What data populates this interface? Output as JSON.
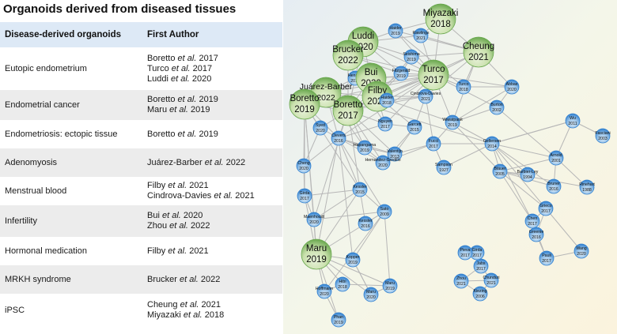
{
  "title": "Organoids derived from diseased tissues",
  "table": {
    "headers": [
      "Disease-derived organoids",
      "First Author"
    ],
    "rows": [
      {
        "disease": "Eutopic endometrium",
        "authors": [
          [
            "Boretto ",
            "et al.",
            " 2017"
          ],
          [
            "Turco ",
            "et al.",
            " 2017"
          ],
          [
            "Luddi ",
            "et al.",
            " 2020"
          ]
        ]
      },
      {
        "disease": "Endometrial cancer",
        "authors": [
          [
            "Boretto ",
            "et al.",
            " 2019"
          ],
          [
            "Maru ",
            "et al.",
            " 2019"
          ]
        ]
      },
      {
        "disease": "Endometriosis: ectopic tissue",
        "authors": [
          [
            "Boretto ",
            "et al.",
            " 2019"
          ]
        ]
      },
      {
        "disease": "Adenomyosis",
        "authors": [
          [
            "Juárez-Barber ",
            "et al.",
            " 2022"
          ]
        ]
      },
      {
        "disease": "Menstrual blood",
        "authors": [
          [
            "Filby ",
            "et al.",
            " 2021"
          ],
          [
            "Cindrova-Davies ",
            "et al.",
            " 2021"
          ]
        ]
      },
      {
        "disease": "Infertility",
        "authors": [
          [
            "Bui ",
            "et al.",
            " 2020"
          ],
          [
            "Zhou ",
            "et al.",
            " 2022"
          ]
        ]
      },
      {
        "disease": "Hormonal medication",
        "authors": [
          [
            "Filby ",
            "et al.",
            " 2021"
          ]
        ]
      },
      {
        "disease": "MRKH syndrome",
        "authors": [
          [
            "Brucker ",
            "et al.",
            " 2022"
          ]
        ]
      },
      {
        "disease": "iPSC",
        "authors": [
          [
            "Cheung ",
            "et al.",
            " 2021"
          ],
          [
            "Miyazaki ",
            "et al.",
            " 2018"
          ]
        ]
      }
    ]
  },
  "network": {
    "colors": {
      "big": "#6aa84f",
      "big_light": "#d9ead3",
      "small": "#2f7fcf",
      "small_light": "#cfe2f3",
      "edge": "#b7b7b7"
    },
    "nodes": [
      {
        "id": "miyazaki",
        "name": "Miyazaki",
        "year": "2018",
        "big": true
      },
      {
        "id": "haider1",
        "name": "Haider",
        "year": "2019",
        "big": false
      },
      {
        "id": "rawlings",
        "name": "Rawlings",
        "year": "2021",
        "big": false
      },
      {
        "id": "luddi",
        "name": "Luddi",
        "year": "2020",
        "big": true
      },
      {
        "id": "cheung",
        "name": "Cheung",
        "year": "2021",
        "big": true
      },
      {
        "id": "brucker",
        "name": "Brucker",
        "year": "2022",
        "big": true
      },
      {
        "id": "seishima",
        "name": "Seishima",
        "year": "2019",
        "big": false
      },
      {
        "id": "fitzgerald",
        "name": "Fitzgerald",
        "year": "2019",
        "big": false
      },
      {
        "id": "turco",
        "name": "Turco",
        "year": "2017",
        "big": true
      },
      {
        "id": "hennes",
        "name": "Hennes",
        "year": "2019",
        "big": false
      },
      {
        "id": "bui",
        "name": "Bui",
        "year": "2020",
        "big": true
      },
      {
        "id": "juarez",
        "name": "Juárez-Barber",
        "year": "2022",
        "big": true
      },
      {
        "id": "filby",
        "name": "Filby",
        "year": "2021",
        "big": true
      },
      {
        "id": "boretto2019",
        "name": "Boretto",
        "year": "2019",
        "big": true
      },
      {
        "id": "boretto2017",
        "name": "Boretto",
        "year": "2017",
        "big": true
      },
      {
        "id": "cindrova",
        "name": "Cindrova-Davies",
        "year": "2021",
        "big": false
      },
      {
        "id": "abbas",
        "name": "Abbas",
        "year": "2020",
        "big": false
      },
      {
        "id": "haider2",
        "name": "Haider",
        "year": "2018",
        "big": false
      },
      {
        "id": "turco2",
        "name": "Turco",
        "year": "2018",
        "big": false
      },
      {
        "id": "syed",
        "name": "Syed",
        "year": "2020",
        "big": false
      },
      {
        "id": "nguyen",
        "name": "Nguyen",
        "year": "2017",
        "big": false
      },
      {
        "id": "garcett",
        "name": "Garcett",
        "year": "2015",
        "big": false
      },
      {
        "id": "burton",
        "name": "Burton",
        "year": "2002",
        "big": false
      },
      {
        "id": "wiwatpanit",
        "name": "Wiwatpanit",
        "year": "2019",
        "big": false
      },
      {
        "id": "clevers",
        "name": "Clevers",
        "year": "2016",
        "big": false
      },
      {
        "id": "fucci",
        "name": "Fucci",
        "year": "2017",
        "big": false
      },
      {
        "id": "hapangama",
        "name": "Hapangama",
        "year": "2019",
        "big": false
      },
      {
        "id": "valentijn",
        "name": "Valentijn",
        "year": "2013",
        "big": false
      },
      {
        "id": "gellersen",
        "name": "Gellersen",
        "year": "2014",
        "big": false
      },
      {
        "id": "wu",
        "name": "Wu",
        "year": "2011",
        "big": false
      },
      {
        "id": "fasciani",
        "name": "Fasciani",
        "year": "2003",
        "big": false
      },
      {
        "id": "hernandez",
        "name": "Hernandez-Gordillo",
        "year": "2020",
        "big": false
      },
      {
        "id": "cheng",
        "name": "Cheng",
        "year": "2020",
        "big": false
      },
      {
        "id": "sampson",
        "name": "Sampson",
        "year": "1927",
        "big": false
      },
      {
        "id": "blauer",
        "name": "Bläuer",
        "year": "2005",
        "big": false
      },
      {
        "id": "arnold",
        "name": "Arnold",
        "year": "2001",
        "big": false
      },
      {
        "id": "barbier",
        "name": "Barbier-Ley",
        "year": "1994",
        "big": false
      },
      {
        "id": "bruner",
        "name": "Bruner",
        "year": "2016",
        "big": false
      },
      {
        "id": "rinehart",
        "name": "Rinehart",
        "year": "1988",
        "big": false
      },
      {
        "id": "girda",
        "name": "Girda",
        "year": "2017",
        "big": false
      },
      {
        "id": "kessler1",
        "name": "Kessler",
        "year": "2015",
        "big": false
      },
      {
        "id": "maenhoudt",
        "name": "Maenhoudt",
        "year": "2020",
        "big": false
      },
      {
        "id": "sato",
        "name": "Sato",
        "year": "2009",
        "big": false
      },
      {
        "id": "kessler2",
        "name": "Kessler",
        "year": "2016",
        "big": false
      },
      {
        "id": "grieco",
        "name": "Grieco",
        "year": "2017",
        "big": false
      },
      {
        "id": "chen",
        "name": "Chen",
        "year": "2017",
        "big": false
      },
      {
        "id": "greenie",
        "name": "Greenie",
        "year": "2016",
        "big": false
      },
      {
        "id": "maru",
        "name": "Maru",
        "year": "2019",
        "big": true
      },
      {
        "id": "kopper",
        "name": "Kopper",
        "year": "2019",
        "big": false
      },
      {
        "id": "pauli",
        "name": "Pauli",
        "year": "2017",
        "big": false
      },
      {
        "id": "wang",
        "name": "Wang",
        "year": "2020",
        "big": false
      },
      {
        "id": "jabs",
        "name": "Jabs",
        "year": "2017",
        "big": false
      },
      {
        "id": "hoffmann",
        "name": "Hoffmann",
        "year": "2020",
        "big": false
      },
      {
        "id": "hibi",
        "name": "Hibi",
        "year": "2018",
        "big": false
      },
      {
        "id": "maru2",
        "name": "Maru",
        "year": "2019",
        "big": false
      },
      {
        "id": "maru3",
        "name": "Maru",
        "year": "2020",
        "big": false
      },
      {
        "id": "chunduri",
        "name": "Chunduri",
        "year": "2021",
        "big": false
      },
      {
        "id": "zhou",
        "name": "Zhou",
        "year": "2021",
        "big": false
      },
      {
        "id": "kiezing",
        "name": "Kiezing",
        "year": "2006",
        "big": false
      },
      {
        "id": "phan",
        "name": "Phan",
        "year": "2019",
        "big": false
      },
      {
        "id": "girda2",
        "name": "Girda",
        "year": "2017",
        "big": false
      },
      {
        "id": "pieva",
        "name": "Pieva",
        "year": "2017",
        "big": false
      }
    ],
    "edges": [
      [
        "boretto2017",
        "turco"
      ],
      [
        "boretto2017",
        "boretto2019"
      ],
      [
        "boretto2017",
        "juarez"
      ],
      [
        "boretto2017",
        "filby"
      ],
      [
        "boretto2017",
        "bui"
      ],
      [
        "boretto2017",
        "luddi"
      ],
      [
        "boretto2017",
        "brucker"
      ],
      [
        "boretto2017",
        "cheung"
      ],
      [
        "boretto2017",
        "fitzgerald"
      ],
      [
        "boretto2017",
        "hennes"
      ],
      [
        "boretto2017",
        "clevers"
      ],
      [
        "boretto2017",
        "nguyen"
      ],
      [
        "boretto2017",
        "syed"
      ],
      [
        "boretto2017",
        "hapangama"
      ],
      [
        "boretto2017",
        "valentijn"
      ],
      [
        "boretto2017",
        "hernandez"
      ],
      [
        "boretto2017",
        "kessler1"
      ],
      [
        "boretto2017",
        "maenhoudt"
      ],
      [
        "boretto2017",
        "cindrova"
      ],
      [
        "boretto2017",
        "haider2"
      ],
      [
        "turco",
        "boretto2019"
      ],
      [
        "turco",
        "juarez"
      ],
      [
        "turco",
        "filby"
      ],
      [
        "turco",
        "bui"
      ],
      [
        "turco",
        "luddi"
      ],
      [
        "turco",
        "brucker"
      ],
      [
        "turco",
        "cheung"
      ],
      [
        "turco",
        "fitzgerald"
      ],
      [
        "turco",
        "haider1"
      ],
      [
        "turco",
        "rawlings"
      ],
      [
        "turco",
        "seishima"
      ],
      [
        "turco",
        "cindrova"
      ],
      [
        "turco",
        "garcett"
      ],
      [
        "turco",
        "wiwatpanit"
      ],
      [
        "turco",
        "abbas"
      ],
      [
        "turco",
        "turco2"
      ],
      [
        "turco",
        "burton"
      ],
      [
        "turco",
        "miyazaki"
      ],
      [
        "turco",
        "hennes"
      ],
      [
        "turco",
        "haider2"
      ],
      [
        "turco",
        "nguyen"
      ],
      [
        "turco",
        "clevers"
      ],
      [
        "boretto2019",
        "juarez"
      ],
      [
        "boretto2019",
        "maru"
      ],
      [
        "boretto2019",
        "syed"
      ],
      [
        "boretto2019",
        "cheng"
      ],
      [
        "boretto2019",
        "girda"
      ],
      [
        "boretto2019",
        "maenhoudt"
      ],
      [
        "boretto2019",
        "kessler1"
      ],
      [
        "boretto2019",
        "clevers"
      ],
      [
        "juarez",
        "filby"
      ],
      [
        "juarez",
        "bui"
      ],
      [
        "juarez",
        "hennes"
      ],
      [
        "juarez",
        "clevers"
      ],
      [
        "juarez",
        "hapangama"
      ],
      [
        "juarez",
        "gellersen"
      ],
      [
        "filby",
        "bui"
      ],
      [
        "filby",
        "cindrova"
      ],
      [
        "filby",
        "fitzgerald"
      ],
      [
        "filby",
        "seishima"
      ],
      [
        "filby",
        "garcett"
      ],
      [
        "filby",
        "nguyen"
      ],
      [
        "filby",
        "wiwatpanit"
      ],
      [
        "filby",
        "haider2"
      ],
      [
        "luddi",
        "brucker"
      ],
      [
        "luddi",
        "bui"
      ],
      [
        "luddi",
        "haider1"
      ],
      [
        "luddi",
        "rawlings"
      ],
      [
        "luddi",
        "fitzgerald"
      ],
      [
        "luddi",
        "seishima"
      ],
      [
        "brucker",
        "hennes"
      ],
      [
        "brucker",
        "fitzgerald"
      ],
      [
        "cheung",
        "rawlings"
      ],
      [
        "cheung",
        "miyazaki"
      ],
      [
        "cheung",
        "abbas"
      ],
      [
        "cheung",
        "turco2"
      ],
      [
        "cheung",
        "seishima"
      ],
      [
        "cheung",
        "cindrova"
      ],
      [
        "cheung",
        "wiwatpanit"
      ],
      [
        "cheung",
        "haider1"
      ],
      [
        "miyazaki",
        "rawlings"
      ],
      [
        "miyazaki",
        "haider1"
      ],
      [
        "wiwatpanit",
        "gellersen"
      ],
      [
        "wiwatpanit",
        "fucci"
      ],
      [
        "wiwatpanit",
        "blauer"
      ],
      [
        "wiwatpanit",
        "abbas"
      ],
      [
        "wiwatpanit",
        "burton"
      ],
      [
        "gellersen",
        "blauer"
      ],
      [
        "gellersen",
        "arnold"
      ],
      [
        "gellersen",
        "sampson"
      ],
      [
        "gellersen",
        "wu"
      ],
      [
        "gellersen",
        "barbier"
      ],
      [
        "gellersen",
        "bruner"
      ],
      [
        "gellersen",
        "chen"
      ],
      [
        "gellersen",
        "grieco"
      ],
      [
        "gellersen",
        "fucci"
      ],
      [
        "blauer",
        "arnold"
      ],
      [
        "blauer",
        "barbier"
      ],
      [
        "blauer",
        "bruner"
      ],
      [
        "blauer",
        "rinehart"
      ],
      [
        "blauer",
        "grieco"
      ],
      [
        "blauer",
        "chen"
      ],
      [
        "arnold",
        "wu"
      ],
      [
        "arnold",
        "bruner"
      ],
      [
        "arnold",
        "rinehart"
      ],
      [
        "arnold",
        "burton"
      ],
      [
        "wu",
        "fasciani"
      ],
      [
        "wu",
        "gellersen"
      ],
      [
        "chen",
        "grieco"
      ],
      [
        "chen",
        "pauli"
      ],
      [
        "chen",
        "greenie"
      ],
      [
        "grieco",
        "greenie"
      ],
      [
        "grieco",
        "wang"
      ],
      [
        "greenie",
        "pauli"
      ],
      [
        "pauli",
        "wang"
      ],
      [
        "fucci",
        "sampson"
      ],
      [
        "fucci",
        "valentijn"
      ],
      [
        "fucci",
        "hernandez"
      ],
      [
        "fucci",
        "cindrova"
      ],
      [
        "clevers",
        "sato"
      ],
      [
        "clevers",
        "kessler1"
      ],
      [
        "clevers",
        "hapangama"
      ],
      [
        "clevers",
        "valentijn"
      ],
      [
        "clevers",
        "syed"
      ],
      [
        "clevers",
        "cheng"
      ],
      [
        "clevers",
        "maru"
      ],
      [
        "clevers",
        "hernandez"
      ],
      [
        "clevers",
        "nguyen"
      ],
      [
        "clevers",
        "kopper"
      ],
      [
        "hapangama",
        "valentijn"
      ],
      [
        "hapangama",
        "hernandez"
      ],
      [
        "valentijn",
        "hernandez"
      ],
      [
        "valentijn",
        "garcett"
      ],
      [
        "sato",
        "kessler1"
      ],
      [
        "sato",
        "kessler2"
      ],
      [
        "sato",
        "maru"
      ],
      [
        "sato",
        "maru2"
      ],
      [
        "sato",
        "kopper"
      ],
      [
        "sato",
        "hoffmann"
      ],
      [
        "sato",
        "maenhoudt"
      ],
      [
        "kessler1",
        "maenhoudt"
      ],
      [
        "kessler1",
        "kessler2"
      ],
      [
        "kessler1",
        "girda"
      ],
      [
        "kessler1",
        "maru"
      ],
      [
        "maru",
        "kopper"
      ],
      [
        "maru",
        "hoffmann"
      ],
      [
        "maru",
        "hibi"
      ],
      [
        "maru",
        "maru2"
      ],
      [
        "maru",
        "maru3"
      ],
      [
        "maru",
        "maenhoudt"
      ],
      [
        "maru",
        "girda"
      ],
      [
        "maru",
        "phan"
      ],
      [
        "hibi",
        "hoffmann"
      ],
      [
        "hibi",
        "maru2"
      ],
      [
        "maru2",
        "maru3"
      ],
      [
        "maru3",
        "kopper"
      ],
      [
        "hoffmann",
        "phan"
      ],
      [
        "kopper",
        "maru3"
      ],
      [
        "syed",
        "cheng"
      ],
      [
        "cheng",
        "girda"
      ],
      [
        "girda",
        "maenhoudt"
      ],
      [
        "abbas",
        "burton"
      ],
      [
        "abbas",
        "turco2"
      ],
      [
        "turco2",
        "haider1"
      ],
      [
        "seishima",
        "fitzgerald"
      ],
      [
        "cindrova",
        "haider2"
      ],
      [
        "hernandez",
        "garcett"
      ],
      [
        "garcett",
        "nguyen"
      ],
      [
        "nguyen",
        "hennes"
      ],
      [
        "hennes",
        "bui"
      ],
      [
        "jabs",
        "chunduri"
      ],
      [
        "jabs",
        "zhou"
      ],
      [
        "zhou",
        "chunduri"
      ],
      [
        "kiezing",
        "chunduri"
      ],
      [
        "kiezing",
        "zhou"
      ],
      [
        "girda2",
        "pieva"
      ],
      [
        "girda2",
        "jabs"
      ]
    ]
  }
}
